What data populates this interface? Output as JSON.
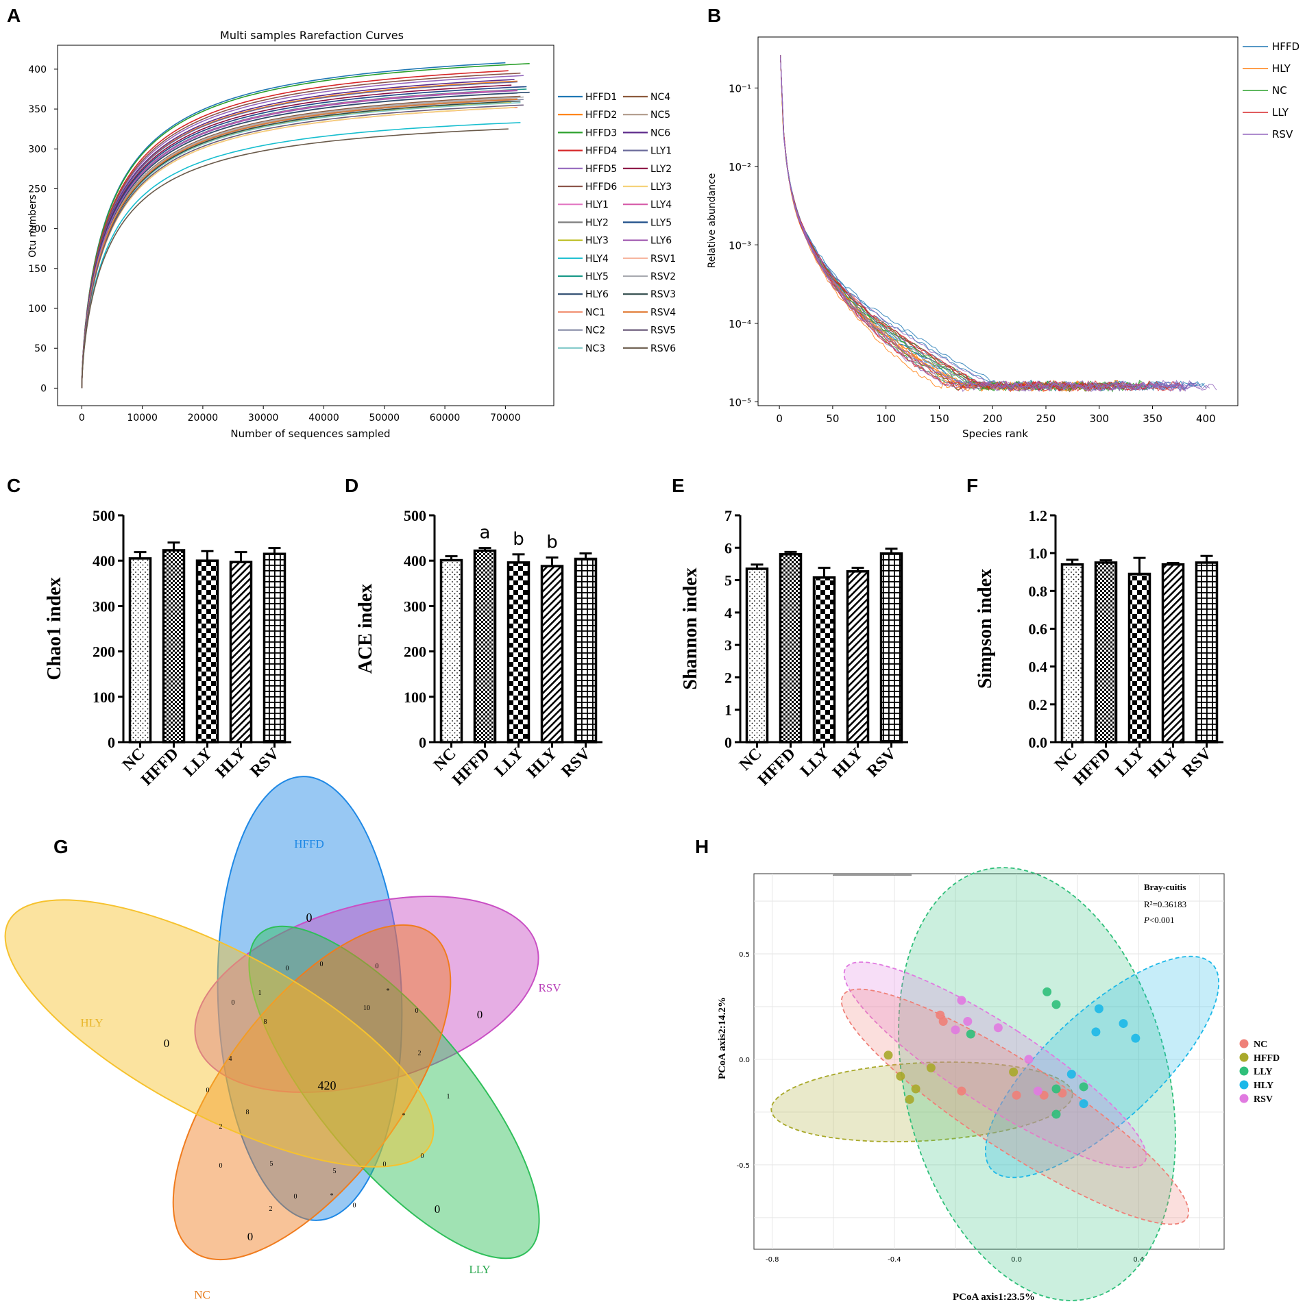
{
  "panel_labels": [
    "A",
    "B",
    "C",
    "D",
    "E",
    "F",
    "G",
    "H"
  ],
  "chart_data": [
    {
      "id": "A",
      "type": "line",
      "title": "Multi samples Rarefaction Curves",
      "xlabel": "Number of sequences sampled",
      "ylabel": "Otu numbers",
      "xlim": [
        -4000,
        78000
      ],
      "ylim": [
        -22,
        430
      ],
      "xticks": [
        0,
        10000,
        20000,
        30000,
        40000,
        50000,
        60000,
        70000
      ],
      "yticks": [
        0,
        50,
        100,
        150,
        200,
        250,
        300,
        350,
        400
      ],
      "series": [
        {
          "name": "HFFD1",
          "color": "#1f77b4",
          "final_x": 70000,
          "final_y": 408
        },
        {
          "name": "HFFD2",
          "color": "#ff7f0e",
          "final_x": 72000,
          "final_y": 385
        },
        {
          "name": "HFFD3",
          "color": "#2ca02c",
          "final_x": 74000,
          "final_y": 407
        },
        {
          "name": "HFFD4",
          "color": "#d62728",
          "final_x": 70500,
          "final_y": 398
        },
        {
          "name": "HFFD5",
          "color": "#9467bd",
          "final_x": 73000,
          "final_y": 392
        },
        {
          "name": "HFFD6",
          "color": "#8c564b",
          "final_x": 72500,
          "final_y": 395
        },
        {
          "name": "HLY1",
          "color": "#e377c2",
          "final_x": 73000,
          "final_y": 378
        },
        {
          "name": "HLY2",
          "color": "#7f7f7f",
          "final_x": 72000,
          "final_y": 370
        },
        {
          "name": "HLY3",
          "color": "#bcbd22",
          "final_x": 71000,
          "final_y": 358
        },
        {
          "name": "HLY4",
          "color": "#17becf",
          "final_x": 72500,
          "final_y": 333
        },
        {
          "name": "HLY5",
          "color": "#1a9988",
          "final_x": 73500,
          "final_y": 375
        },
        {
          "name": "HLY6",
          "color": "#2b4a6e",
          "final_x": 74000,
          "final_y": 371
        },
        {
          "name": "NC1",
          "color": "#f08a6a",
          "final_x": 72000,
          "final_y": 352
        },
        {
          "name": "NC2",
          "color": "#8a8fa8",
          "final_x": 73000,
          "final_y": 362
        },
        {
          "name": "NC3",
          "color": "#7fc8c8",
          "final_x": 72500,
          "final_y": 358
        },
        {
          "name": "NC4",
          "color": "#8c5a3c",
          "final_x": 72500,
          "final_y": 366
        },
        {
          "name": "NC5",
          "color": "#b09a8a",
          "final_x": 72000,
          "final_y": 363
        },
        {
          "name": "NC6",
          "color": "#5c2a8a",
          "final_x": 71500,
          "final_y": 387
        },
        {
          "name": "LLY1",
          "color": "#6a6a9a",
          "final_x": 72000,
          "final_y": 384
        },
        {
          "name": "LLY2",
          "color": "#8a1040",
          "final_x": 71000,
          "final_y": 380
        },
        {
          "name": "LLY3",
          "color": "#f5d27a",
          "final_x": 71500,
          "final_y": 352
        },
        {
          "name": "LLY4",
          "color": "#d65aa8",
          "final_x": 72000,
          "final_y": 374
        },
        {
          "name": "LLY5",
          "color": "#1f4e89",
          "final_x": 73500,
          "final_y": 378
        },
        {
          "name": "LLY6",
          "color": "#a05ab0",
          "final_x": 72000,
          "final_y": 373
        },
        {
          "name": "RSV1",
          "color": "#f7b29a",
          "final_x": 71000,
          "final_y": 364
        },
        {
          "name": "RSV2",
          "color": "#a8aab0",
          "final_x": 73000,
          "final_y": 365
        },
        {
          "name": "RSV3",
          "color": "#2f4a4a",
          "final_x": 72500,
          "final_y": 360
        },
        {
          "name": "RSV4",
          "color": "#e07830",
          "final_x": 72000,
          "final_y": 362
        },
        {
          "name": "RSV5",
          "color": "#6a5a7a",
          "final_x": 73000,
          "final_y": 355
        },
        {
          "name": "RSV6",
          "color": "#6a5a4a",
          "final_x": 70500,
          "final_y": 325
        }
      ]
    },
    {
      "id": "B",
      "type": "line",
      "title": "",
      "xlabel": "Species rank",
      "ylabel": "Relative abundance",
      "yscale": "log",
      "xlim": [
        -20,
        430
      ],
      "ylim_log10": [
        -5.05,
        -0.35
      ],
      "xticks": [
        0,
        50,
        100,
        150,
        200,
        250,
        300,
        350,
        400
      ],
      "ytick_labels": [
        "10⁻¹",
        "10⁻²",
        "10⁻³",
        "10⁻⁴",
        "10⁻⁵"
      ],
      "ytick_exponents": [
        -1,
        -2,
        -3,
        -4,
        -5
      ],
      "series": [
        {
          "name": "HFFD",
          "color": "#1f77b4",
          "n_samples": 6,
          "max_rank": 390
        },
        {
          "name": "HLY",
          "color": "#ff7f0e",
          "n_samples": 6,
          "max_rank": 330
        },
        {
          "name": "NC",
          "color": "#2ca02c",
          "n_samples": 6,
          "max_rank": 360
        },
        {
          "name": "LLY",
          "color": "#d62728",
          "n_samples": 6,
          "max_rank": 370
        },
        {
          "name": "RSV",
          "color": "#9467bd",
          "n_samples": 6,
          "max_rank": 410
        }
      ]
    },
    {
      "id": "C",
      "type": "bar",
      "ylabel": "Chao1 index",
      "categories": [
        "NC",
        "HFFD",
        "LLY",
        "HLY",
        "RSV"
      ],
      "values": [
        405,
        423,
        400,
        397,
        415
      ],
      "errors": [
        14,
        17,
        21,
        22,
        13
      ],
      "ylim": [
        0,
        500
      ],
      "yticks": [
        0,
        100,
        200,
        300,
        400,
        500
      ],
      "ytick_labels": [
        "0",
        "100",
        "200",
        "300",
        "400",
        "500"
      ],
      "patterns": [
        "dots",
        "checker",
        "bigcheck",
        "diag",
        "grid"
      ],
      "annotations": []
    },
    {
      "id": "D",
      "type": "bar",
      "ylabel": "ACE index",
      "categories": [
        "NC",
        "HFFD",
        "LLY",
        "HLY",
        "RSV"
      ],
      "values": [
        401,
        422,
        396,
        388,
        404
      ],
      "errors": [
        9,
        6,
        18,
        19,
        12
      ],
      "ylim": [
        0,
        500
      ],
      "yticks": [
        0,
        100,
        200,
        300,
        400,
        500
      ],
      "ytick_labels": [
        "0",
        "100",
        "200",
        "300",
        "400",
        "500"
      ],
      "patterns": [
        "dots",
        "checker",
        "bigcheck",
        "diag",
        "grid"
      ],
      "annotations": [
        "",
        "a",
        "b",
        "b",
        ""
      ]
    },
    {
      "id": "E",
      "type": "bar",
      "ylabel": "Shannon index",
      "categories": [
        "NC",
        "HFFD",
        "LLY",
        "HLY",
        "RSV"
      ],
      "values": [
        5.35,
        5.8,
        5.08,
        5.27,
        5.82
      ],
      "errors": [
        0.13,
        0.07,
        0.3,
        0.11,
        0.15
      ],
      "ylim": [
        0,
        7
      ],
      "yticks": [
        0,
        1,
        2,
        3,
        4,
        5,
        6,
        7
      ],
      "ytick_labels": [
        "0",
        "1",
        "2",
        "3",
        "4",
        "5",
        "6",
        "7"
      ],
      "patterns": [
        "dots",
        "checker",
        "bigcheck",
        "diag",
        "grid"
      ],
      "annotations": []
    },
    {
      "id": "F",
      "type": "bar",
      "ylabel": "Simpson index",
      "categories": [
        "NC",
        "HFFD",
        "LLY",
        "HLY",
        "RSV"
      ],
      "values": [
        0.94,
        0.95,
        0.89,
        0.94,
        0.95
      ],
      "errors": [
        0.025,
        0.012,
        0.085,
        0.008,
        0.035
      ],
      "ylim": [
        0,
        1.2
      ],
      "yticks": [
        0,
        0.2,
        0.4,
        0.6,
        0.8,
        1.0,
        1.2
      ],
      "ytick_labels": [
        "0.0",
        "0.2",
        "0.4",
        "0.6",
        "0.8",
        "1.0",
        "1.2"
      ],
      "patterns": [
        "dots",
        "checker",
        "bigcheck",
        "diag",
        "grid"
      ],
      "annotations": []
    },
    {
      "id": "G",
      "type": "venn",
      "sets": [
        {
          "name": "HFFD",
          "color": "#1e88e5",
          "label_color": "#1e88e5"
        },
        {
          "name": "RSV",
          "color": "#c94fc4",
          "label_color": "#b83fb8"
        },
        {
          "name": "LLY",
          "color": "#2fbf5a",
          "label_color": "#2aa84f"
        },
        {
          "name": "NC",
          "color": "#f07c1e",
          "label_color": "#e67c1e"
        },
        {
          "name": "HLY",
          "color": "#f6c22e",
          "label_color": "#e8b62a"
        }
      ],
      "region_counts": [
        "0",
        "0",
        "0",
        "0",
        "0",
        "420",
        "0",
        "0",
        "0",
        "8",
        "10",
        "0",
        "1",
        "0",
        "*",
        "2",
        "4",
        "0",
        "8",
        "2",
        "0",
        "5",
        "*",
        "1",
        "2",
        "5",
        "0",
        "0",
        "0",
        "*",
        "0"
      ]
    },
    {
      "id": "H",
      "type": "scatter",
      "xlabel": "PCoA axis1:23.5%",
      "ylabel": "PCoA axis2:14.2%",
      "xlim": [
        -0.86,
        0.68
      ],
      "ylim": [
        -0.9,
        0.88
      ],
      "xticks": [
        -0.8,
        -0.4,
        0.0,
        0.4
      ],
      "xtick_labels": [
        "-0.8",
        "-0.4",
        "0.0",
        "0.4"
      ],
      "yticks": [
        -0.5,
        0.0,
        0.5
      ],
      "ytick_labels": [
        "-0.5",
        "0.0",
        "0.5"
      ],
      "stat_method": "Bray-cuitis",
      "stat_r2": "R²=0.36183",
      "stat_p_label": "P",
      "stat_p_value": "<0.001",
      "series": [
        {
          "name": "NC",
          "color": "#ef8078",
          "points": [
            [
              -0.25,
              0.21
            ],
            [
              -0.18,
              -0.15
            ],
            [
              0.0,
              -0.17
            ],
            [
              0.09,
              -0.17
            ],
            [
              0.15,
              -0.16
            ],
            [
              -0.24,
              0.18
            ]
          ]
        },
        {
          "name": "HFFD",
          "color": "#a9a92a",
          "points": [
            [
              -0.42,
              0.02
            ],
            [
              -0.38,
              -0.08
            ],
            [
              -0.33,
              -0.14
            ],
            [
              -0.35,
              -0.19
            ],
            [
              -0.28,
              -0.04
            ],
            [
              -0.01,
              -0.06
            ]
          ]
        },
        {
          "name": "LLY",
          "color": "#2fbf7a",
          "points": [
            [
              0.1,
              0.32
            ],
            [
              0.13,
              0.26
            ],
            [
              -0.15,
              0.12
            ],
            [
              0.13,
              -0.14
            ],
            [
              0.22,
              -0.13
            ],
            [
              0.13,
              -0.26
            ]
          ]
        },
        {
          "name": "HLY",
          "color": "#1cb8e8",
          "points": [
            [
              0.27,
              0.24
            ],
            [
              0.26,
              0.13
            ],
            [
              0.35,
              0.17
            ],
            [
              0.39,
              0.1
            ],
            [
              0.18,
              -0.07
            ],
            [
              0.22,
              -0.21
            ]
          ]
        },
        {
          "name": "RSV",
          "color": "#e07ae0",
          "points": [
            [
              -0.18,
              0.28
            ],
            [
              -0.16,
              0.18
            ],
            [
              -0.06,
              0.15
            ],
            [
              0.04,
              0.0
            ],
            [
              -0.2,
              0.14
            ],
            [
              0.07,
              -0.15
            ]
          ]
        }
      ]
    }
  ]
}
